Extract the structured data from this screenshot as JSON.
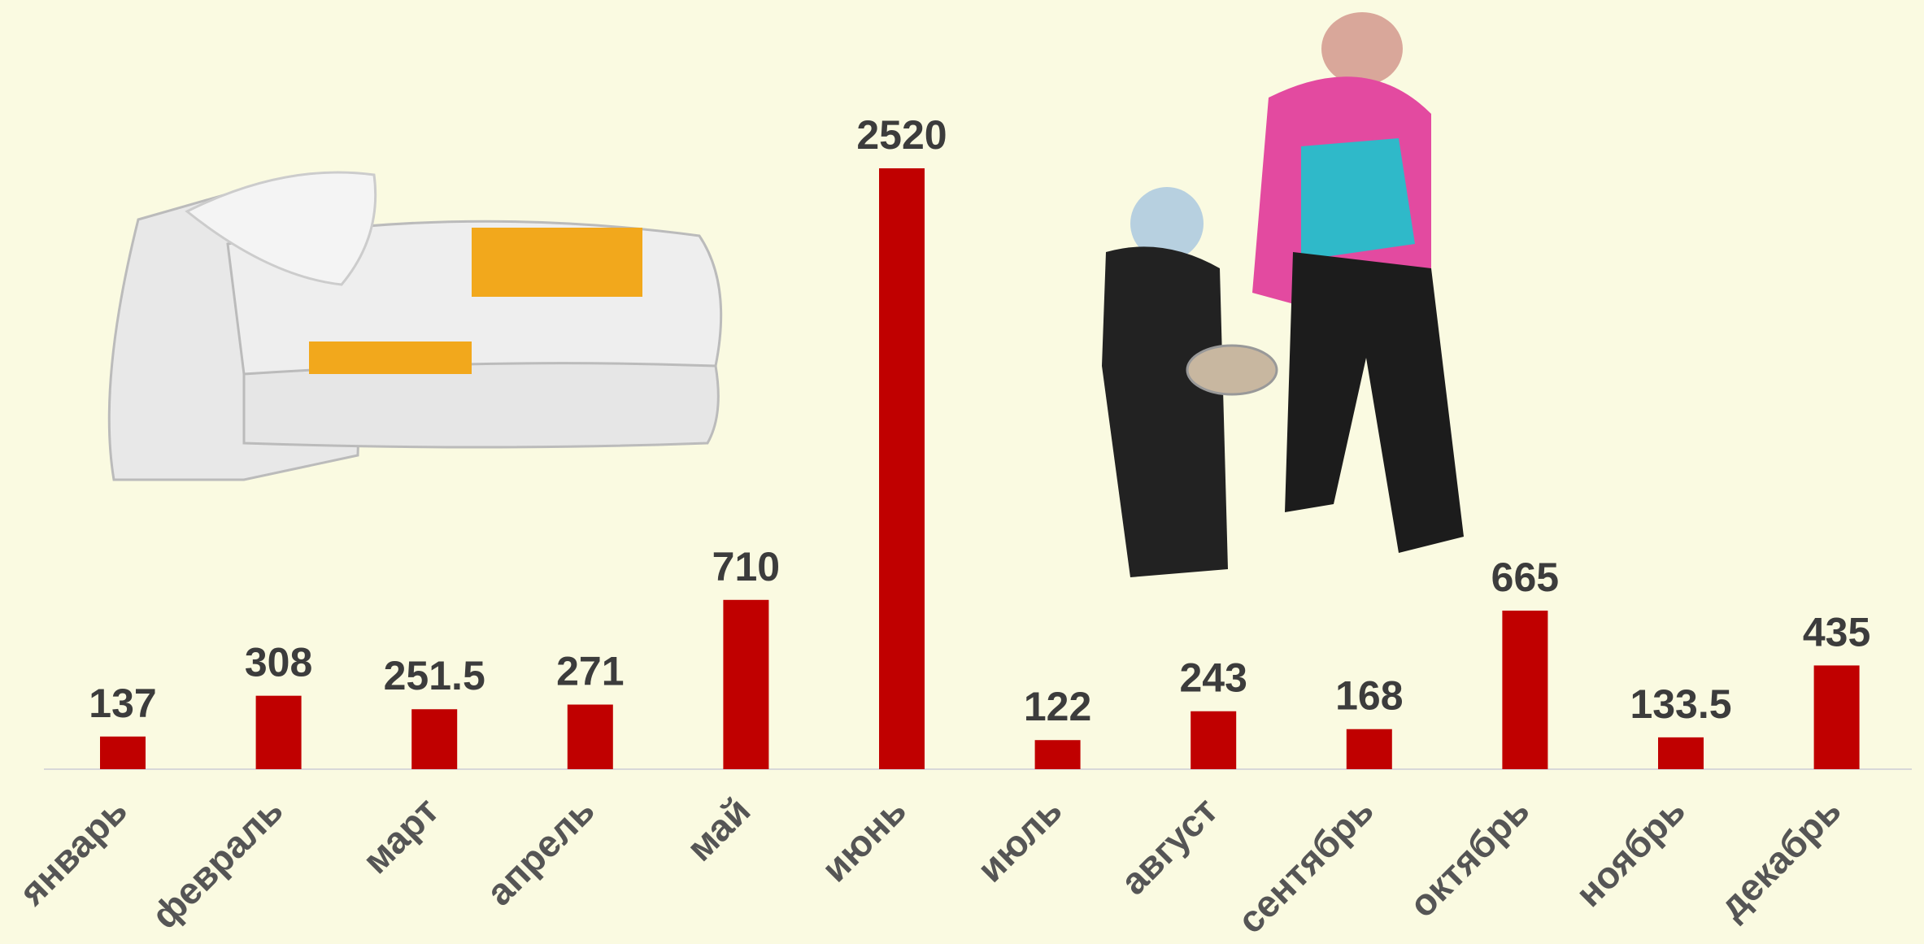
{
  "chart_data": {
    "type": "bar",
    "categories": [
      "январь",
      "февраль",
      "март",
      "апрель",
      "май",
      "июнь",
      "июль",
      "август",
      "сентябрь",
      "октябрь",
      "ноябрь",
      "декабрь"
    ],
    "values": [
      137,
      308,
      251.5,
      271,
      710,
      2520,
      122,
      243,
      168,
      665,
      133.5,
      435
    ],
    "color": "#c00000"
  }
}
